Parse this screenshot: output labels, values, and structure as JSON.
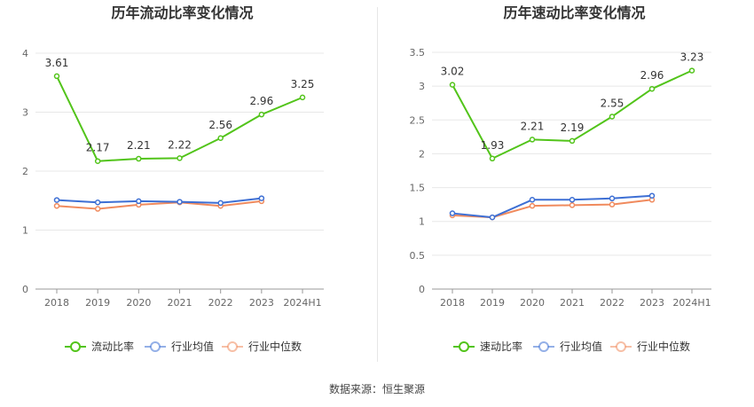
{
  "chart_data": [
    {
      "type": "line",
      "title": "历年流动比率变化情况",
      "categories": [
        "2018",
        "2019",
        "2020",
        "2021",
        "2022",
        "2023",
        "2024H1"
      ],
      "ylim": [
        0,
        4
      ],
      "yticks": [
        "0",
        "1",
        "2",
        "3",
        "4"
      ],
      "grid": true,
      "legend_position": "bottom",
      "series": [
        {
          "name": "流动比率",
          "color": "#52c41a",
          "values": [
            3.61,
            2.17,
            2.21,
            2.22,
            2.56,
            2.96,
            3.25
          ],
          "labels": [
            "3.61",
            "2.17",
            "2.21",
            "2.22",
            "2.56",
            "2.96",
            "3.25"
          ]
        },
        {
          "name": "行业均值",
          "color": "#3d6fd4",
          "values": [
            1.51,
            1.47,
            1.49,
            1.48,
            1.46,
            1.54,
            null
          ]
        },
        {
          "name": "行业中位数",
          "color": "#f08a5d",
          "values": [
            1.41,
            1.36,
            1.43,
            1.47,
            1.41,
            1.49,
            null
          ]
        }
      ]
    },
    {
      "type": "line",
      "title": "历年速动比率变化情况",
      "categories": [
        "2018",
        "2019",
        "2020",
        "2021",
        "2022",
        "2023",
        "2024H1"
      ],
      "ylim": [
        0,
        3.5
      ],
      "yticks": [
        "0",
        "0.5",
        "1",
        "1.5",
        "2",
        "2.5",
        "3",
        "3.5"
      ],
      "grid": true,
      "legend_position": "bottom",
      "series": [
        {
          "name": "速动比率",
          "color": "#52c41a",
          "values": [
            3.02,
            1.93,
            2.21,
            2.19,
            2.55,
            2.96,
            3.23
          ],
          "labels": [
            "3.02",
            "1.93",
            "2.21",
            "2.19",
            "2.55",
            "2.96",
            "3.23"
          ]
        },
        {
          "name": "行业均值",
          "color": "#3d6fd4",
          "values": [
            1.12,
            1.06,
            1.32,
            1.32,
            1.34,
            1.38,
            null
          ]
        },
        {
          "name": "行业中位数",
          "color": "#f08a5d",
          "values": [
            1.09,
            1.06,
            1.23,
            1.24,
            1.25,
            1.32,
            null
          ]
        }
      ]
    }
  ],
  "footer": {
    "source": "数据来源：恒生聚源"
  }
}
